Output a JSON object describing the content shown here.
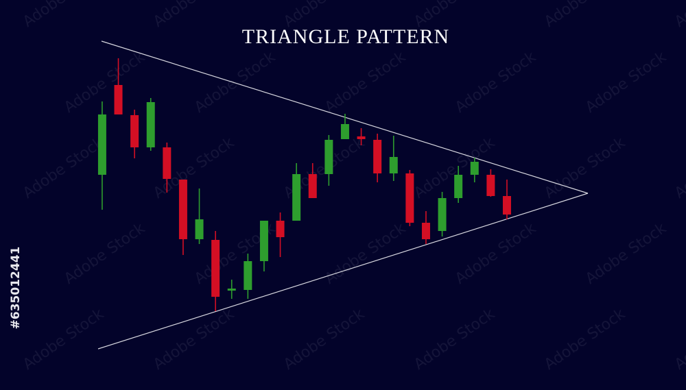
{
  "chart_data": {
    "type": "candlestick",
    "title": "TRIANGLE PATTERN",
    "side_text": "#635012441",
    "watermark": "Adobe Stock",
    "up_color": "#2e9e2e",
    "down_color": "#d40f24",
    "line_color": "#d8d8e0",
    "background": "#03032a",
    "xlim": [
      -6.31,
      36.06
    ],
    "ylim": [
      0,
      100
    ],
    "open": [
      61.25,
      94,
      83,
      71.25,
      71.25,
      59.5,
      37.75,
      37.5,
      19,
      19.25,
      29.75,
      44.5,
      44.5,
      61.5,
      61.5,
      74.25,
      75.25,
      74,
      61.75,
      61.75,
      43.75,
      40.75,
      52.75,
      61.25,
      61.25,
      53.5
    ],
    "high": [
      88,
      103.75,
      85,
      89.25,
      73,
      59.5,
      56.25,
      40.75,
      23,
      32.5,
      44.5,
      47.5,
      65.5,
      65.5,
      75.75,
      83.5,
      78.25,
      76.25,
      75.5,
      63,
      48,
      55,
      64.5,
      67.5,
      63.25,
      59.5
    ],
    "low": [
      48.5,
      83.25,
      67.25,
      70,
      54.75,
      32,
      36,
      11.5,
      16,
      16,
      26,
      31.25,
      44.5,
      52.75,
      57.25,
      74.25,
      72,
      58.5,
      59,
      42.5,
      36,
      38.75,
      51,
      58.5,
      53.25,
      45
    ],
    "close": [
      83.25,
      83.25,
      71.25,
      87.75,
      59.75,
      37.75,
      45,
      16.75,
      19.75,
      29.75,
      44.5,
      38.5,
      61.5,
      52.75,
      74,
      79.75,
      74.25,
      61.75,
      67.75,
      43.75,
      37.75,
      52.75,
      61.25,
      66,
      53.5,
      46.75
    ],
    "trendlines": [
      {
        "x": [
          -0.04,
          30
        ],
        "y": [
          110,
          54.5
        ]
      },
      {
        "x": [
          -0.25,
          30
        ],
        "y": [
          -2.25,
          54.5
        ]
      }
    ]
  }
}
